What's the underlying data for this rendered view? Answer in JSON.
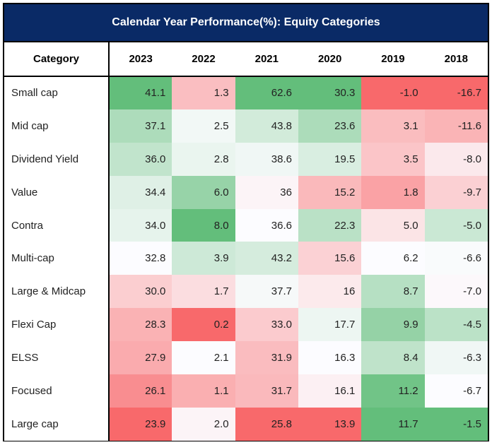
{
  "title": "Calendar Year Performance(%): Equity Categories",
  "chart_data": {
    "type": "table",
    "columns": [
      "Category",
      "2023",
      "2022",
      "2021",
      "2020",
      "2019",
      "2018"
    ],
    "rows": [
      {
        "category": "Small cap",
        "values": [
          "41.1",
          "1.3",
          "62.6",
          "30.3",
          "-1.0",
          "-16.7"
        ]
      },
      {
        "category": "Mid cap",
        "values": [
          "37.1",
          "2.5",
          "43.8",
          "23.6",
          "3.1",
          "-11.6"
        ]
      },
      {
        "category": "Dividend Yield",
        "values": [
          "36.0",
          "2.8",
          "38.6",
          "19.5",
          "3.5",
          "-8.0"
        ]
      },
      {
        "category": "Value",
        "values": [
          "34.4",
          "6.0",
          "36",
          "15.2",
          "1.8",
          "-9.7"
        ]
      },
      {
        "category": "Contra",
        "values": [
          "34.0",
          "8.0",
          "36.6",
          "22.3",
          "5.0",
          "-5.0"
        ]
      },
      {
        "category": "Multi-cap",
        "values": [
          "32.8",
          "3.9",
          "43.2",
          "15.6",
          "6.2",
          "-6.6"
        ]
      },
      {
        "category": "Large & Midcap",
        "values": [
          "30.0",
          "1.7",
          "37.7",
          "16",
          "8.7",
          "-7.0"
        ]
      },
      {
        "category": "Flexi Cap",
        "values": [
          "28.3",
          "0.2",
          "33.0",
          "17.7",
          "9.9",
          "-4.5"
        ]
      },
      {
        "category": "ELSS",
        "values": [
          "27.9",
          "2.1",
          "31.9",
          "16.3",
          "8.4",
          "-6.3"
        ]
      },
      {
        "category": "Focused",
        "values": [
          "26.1",
          "1.1",
          "31.7",
          "16.1",
          "11.2",
          "-6.7"
        ]
      },
      {
        "category": "Large cap",
        "values": [
          "23.9",
          "2.0",
          "25.8",
          "13.9",
          "11.7",
          "-1.5"
        ]
      }
    ],
    "color_scale": {
      "low": "#f8696b",
      "mid": "#fcfcff",
      "high": "#63be7b",
      "scope": "per-column"
    }
  }
}
